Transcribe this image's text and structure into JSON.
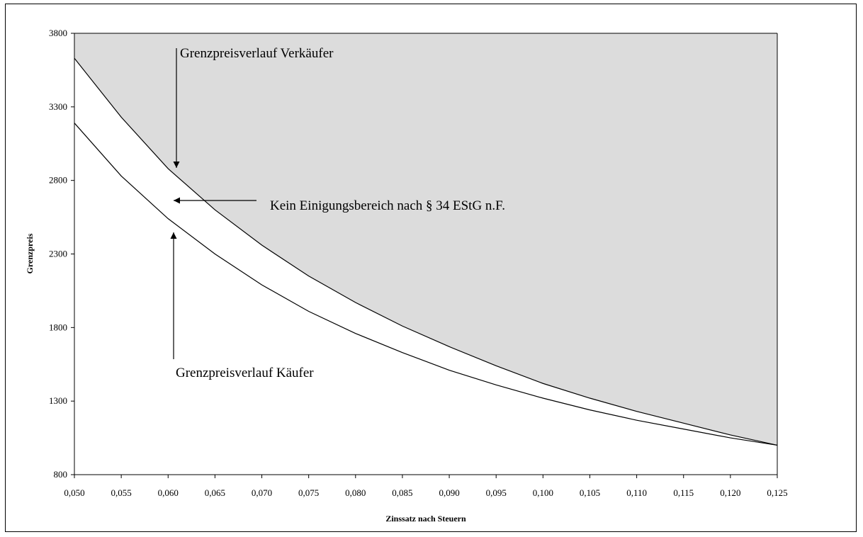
{
  "chart_data": {
    "type": "line",
    "title": "",
    "xlabel": "Zinssatz nach Steuern",
    "ylabel": "Grenzpreis",
    "xlim": [
      0.05,
      0.125
    ],
    "ylim": [
      800,
      3800
    ],
    "x_ticks": [
      "0,050",
      "0,055",
      "0,060",
      "0,065",
      "0,070",
      "0,075",
      "0,080",
      "0,085",
      "0,090",
      "0,095",
      "0,100",
      "0,105",
      "0,110",
      "0,115",
      "0,120",
      "0,125"
    ],
    "y_ticks": [
      "800",
      "1300",
      "1800",
      "2300",
      "2800",
      "3300",
      "3800"
    ],
    "grid": false,
    "x": [
      0.05,
      0.055,
      0.06,
      0.065,
      0.07,
      0.075,
      0.08,
      0.085,
      0.09,
      0.095,
      0.1,
      0.105,
      0.11,
      0.115,
      0.12,
      0.125
    ],
    "series": [
      {
        "values": [
          3630,
          3230,
          2880,
          2600,
          2360,
          2150,
          1970,
          1810,
          1670,
          1540,
          1420,
          1320,
          1230,
          1150,
          1070,
          1000
        ]
      },
      {
        "values": [
          3190,
          2830,
          2540,
          2300,
          2090,
          1910,
          1760,
          1630,
          1510,
          1410,
          1320,
          1240,
          1170,
          1110,
          1050,
          1000
        ]
      }
    ],
    "shaded_region": "above-upper-curve",
    "colors": {
      "shade": "#dcdcdc",
      "line": "#000000"
    },
    "annotations": {
      "seller": "Grenzpreisverlauf Verkäufer",
      "buyer": "Grenzpreisverlauf Käufer",
      "no_agreement": "Kein Einigungsbereich nach § 34 EStG n.F."
    }
  }
}
